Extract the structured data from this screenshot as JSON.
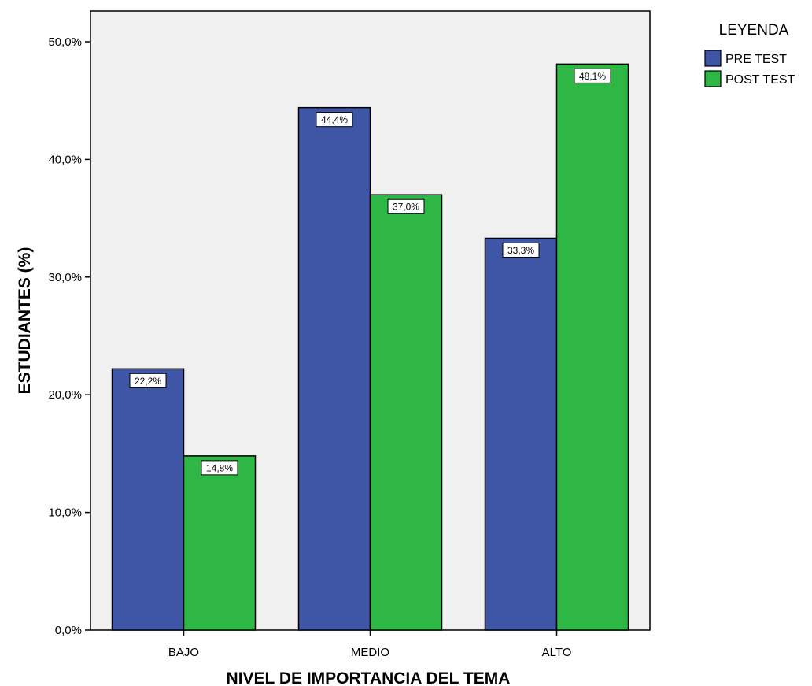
{
  "chart_data": {
    "type": "bar",
    "categories": [
      "BAJO",
      "MEDIO",
      "ALTO"
    ],
    "series": [
      {
        "name": "PRE TEST",
        "values": [
          22.2,
          44.4,
          33.3
        ],
        "labels": [
          "22,2%",
          "44,4%",
          "33,3%"
        ],
        "color": "#3f56a7"
      },
      {
        "name": "POST TEST",
        "values": [
          14.8,
          37.0,
          48.1
        ],
        "labels": [
          "14,8%",
          "37,0%",
          "48,1%"
        ],
        "color": "#2fb746"
      }
    ],
    "xlabel": "NIVEL DE IMPORTANCIA DEL TEMA",
    "ylabel": "ESTUDIANTES (%)",
    "ylim": [
      0,
      50
    ],
    "yticks": [
      0,
      10,
      20,
      30,
      40,
      50
    ],
    "ytick_labels": [
      "0,0%",
      "10,0%",
      "20,0%",
      "30,0%",
      "40,0%",
      "50,0%"
    ],
    "legend": {
      "title": "LEYENDA",
      "position": "top-right"
    },
    "plot_background": "#f0f0f0",
    "grid": false
  }
}
